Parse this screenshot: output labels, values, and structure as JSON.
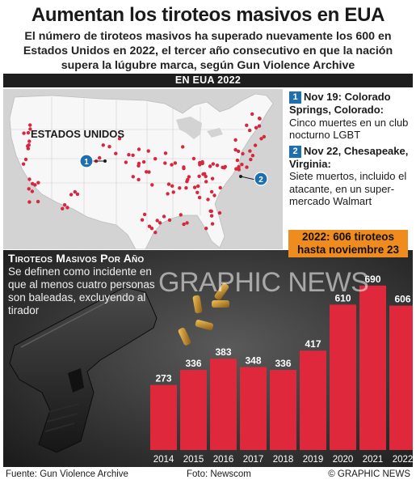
{
  "header": {
    "title": "Aumentan los tiroteos masivos en EUA",
    "subtitle": "El número de tiroteos masivos ha superado nuevamente los 600 en Estados Unidos en 2022, el tercer año consecutivo en que la nación supera la lúgubre marca, según Gun Violence Archive"
  },
  "section_label": "EN EUA 2022",
  "map": {
    "country_label": "ESTADOS UNIDOS",
    "marker_1": "1",
    "marker_2": "2",
    "land_color": "#f7f7f7",
    "water_color": "#d3d3d3",
    "dot_color": "#d7263d",
    "marker_color": "#1f6fae"
  },
  "events": [
    {
      "num": "1",
      "heading": "Nov 19: Colorado Springs, Colorado:",
      "body": "Cinco muertes en un club nocturno LGBT"
    },
    {
      "num": "2",
      "heading": "Nov 22, Chesapeake, Virginia:",
      "body": "Siete muertos, incluido el atacante, en un super-mercado Walmart"
    }
  ],
  "callout": {
    "line1": "2022: 606 tiroteos",
    "line2": "hasta noviembre 23",
    "color": "#f08c1e"
  },
  "chart_panel": {
    "title": "Tiroteos Masivos Por Año",
    "description": "Se definen como incidente en que al menos cuatro personas son baleadas, excluyendo al tirador",
    "watermark": "GRAPHIC NEWS"
  },
  "chart_data": {
    "type": "bar",
    "title": "Tiroteos Masivos Por Año",
    "categories": [
      "2014",
      "2015",
      "2016",
      "2017",
      "2018",
      "2019",
      "2020",
      "2021",
      "2022"
    ],
    "values": [
      273,
      336,
      383,
      348,
      336,
      417,
      610,
      690,
      606
    ],
    "bar_color": "#e0283c",
    "xlabel": "",
    "ylabel": "",
    "ylim": [
      0,
      720
    ],
    "grid": false,
    "data_labels": true
  },
  "footer": {
    "source": "Fuente: Gun Violence Archive",
    "photo": "Foto: Newscom",
    "credit": "© GRAPHIC NEWS"
  }
}
